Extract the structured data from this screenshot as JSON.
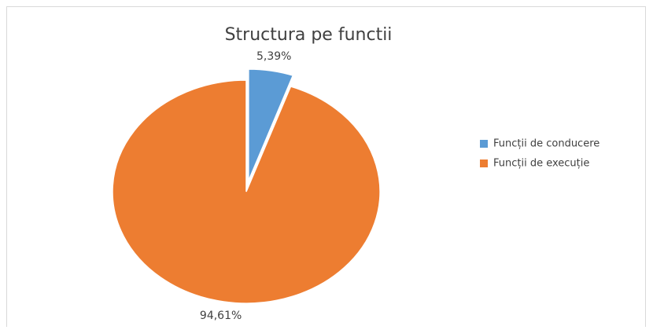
{
  "chart_data": {
    "type": "pie",
    "title": "Structura pe functii",
    "categories": [
      "Funcții de conducere",
      "Funcții de execuție"
    ],
    "values": [
      5.39,
      94.61
    ],
    "value_labels": [
      "5,39%",
      "94,61%"
    ],
    "colors": [
      "#5b9bd5",
      "#ed7d31"
    ],
    "legend": "right"
  }
}
